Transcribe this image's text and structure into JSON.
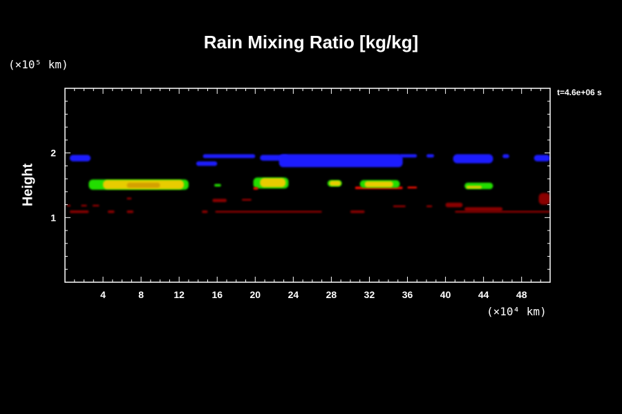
{
  "chart_data": {
    "type": "heatmap",
    "title": "Rain Mixing Ratio [kg/kg]",
    "ylabel": "Height",
    "x_unit": "(×10⁴ km)",
    "y_unit": "(×10⁵ km)",
    "time_label": "t=4.6e+06 s",
    "xlim": [
      0,
      51
    ],
    "ylim": [
      0,
      3
    ],
    "x_ticks": [
      4,
      8,
      12,
      16,
      20,
      24,
      28,
      32,
      36,
      40,
      44,
      48
    ],
    "y_ticks": [
      1,
      2
    ],
    "colors": {
      "blue": "#1a1aff",
      "green": "#22dd00",
      "yellow": "#e8cc00",
      "orange": "#d4a000",
      "red": "#ee1100",
      "darkred": "#8b0000",
      "axis": "#ffffff",
      "background": "#000000"
    },
    "regions": [
      {
        "level": "blue",
        "x0": 0.5,
        "x1": 2.7,
        "y0": 1.87,
        "y1": 1.97
      },
      {
        "level": "blue",
        "x0": 13.8,
        "x1": 16.0,
        "y0": 1.8,
        "y1": 1.87
      },
      {
        "level": "blue",
        "x0": 14.5,
        "x1": 20.0,
        "y0": 1.92,
        "y1": 1.98
      },
      {
        "level": "blue",
        "x0": 20.5,
        "x1": 23.5,
        "y0": 1.88,
        "y1": 1.97
      },
      {
        "level": "blue",
        "x0": 22.5,
        "x1": 35.5,
        "y0": 1.78,
        "y1": 1.98
      },
      {
        "level": "blue",
        "x0": 35.2,
        "x1": 37.0,
        "y0": 1.93,
        "y1": 1.98
      },
      {
        "level": "blue",
        "x0": 38.0,
        "x1": 38.8,
        "y0": 1.93,
        "y1": 1.98
      },
      {
        "level": "blue",
        "x0": 40.8,
        "x1": 45.0,
        "y0": 1.84,
        "y1": 1.98
      },
      {
        "level": "blue",
        "x0": 46.0,
        "x1": 46.7,
        "y0": 1.92,
        "y1": 1.98
      },
      {
        "level": "blue",
        "x0": 49.3,
        "x1": 51.0,
        "y0": 1.87,
        "y1": 1.97
      },
      {
        "level": "green",
        "x0": 2.5,
        "x1": 13.0,
        "y0": 1.43,
        "y1": 1.59
      },
      {
        "level": "yellow",
        "x0": 4.0,
        "x1": 12.5,
        "y0": 1.44,
        "y1": 1.58
      },
      {
        "level": "orange",
        "x0": 6.5,
        "x1": 10.0,
        "y0": 1.46,
        "y1": 1.54
      },
      {
        "level": "green",
        "x0": 15.7,
        "x1": 16.4,
        "y0": 1.48,
        "y1": 1.52
      },
      {
        "level": "green",
        "x0": 19.8,
        "x1": 23.5,
        "y0": 1.45,
        "y1": 1.62
      },
      {
        "level": "yellow",
        "x0": 20.5,
        "x1": 23.2,
        "y0": 1.47,
        "y1": 1.61
      },
      {
        "level": "red",
        "x0": 19.8,
        "x1": 20.3,
        "y0": 1.43,
        "y1": 1.47
      },
      {
        "level": "green",
        "x0": 27.6,
        "x1": 29.1,
        "y0": 1.48,
        "y1": 1.58
      },
      {
        "level": "yellow",
        "x0": 27.8,
        "x1": 29.0,
        "y0": 1.49,
        "y1": 1.57
      },
      {
        "level": "red",
        "x0": 30.5,
        "x1": 35.5,
        "y0": 1.44,
        "y1": 1.48
      },
      {
        "level": "green",
        "x0": 31.0,
        "x1": 35.2,
        "y0": 1.46,
        "y1": 1.58
      },
      {
        "level": "yellow",
        "x0": 31.5,
        "x1": 34.5,
        "y0": 1.47,
        "y1": 1.56
      },
      {
        "level": "red",
        "x0": 36.0,
        "x1": 37.0,
        "y0": 1.45,
        "y1": 1.48
      },
      {
        "level": "green",
        "x0": 42.0,
        "x1": 45.0,
        "y0": 1.44,
        "y1": 1.54
      },
      {
        "level": "yellow",
        "x0": 42.2,
        "x1": 43.8,
        "y0": 1.45,
        "y1": 1.49
      },
      {
        "level": "darkred",
        "x0": 0.5,
        "x1": 2.5,
        "y0": 1.07,
        "y1": 1.11
      },
      {
        "level": "darkred",
        "x0": 4.5,
        "x1": 5.2,
        "y0": 1.07,
        "y1": 1.11
      },
      {
        "level": "darkred",
        "x0": 6.5,
        "x1": 7.2,
        "y0": 1.07,
        "y1": 1.11
      },
      {
        "level": "darkred",
        "x0": 14.4,
        "x1": 15.0,
        "y0": 1.07,
        "y1": 1.11
      },
      {
        "level": "darkred",
        "x0": 15.8,
        "x1": 27.0,
        "y0": 1.075,
        "y1": 1.105
      },
      {
        "level": "darkred",
        "x0": 30.0,
        "x1": 31.5,
        "y0": 1.07,
        "y1": 1.11
      },
      {
        "level": "darkred",
        "x0": 41.0,
        "x1": 51.0,
        "y0": 1.075,
        "y1": 1.105
      },
      {
        "level": "darkred",
        "x0": 0.2,
        "x1": 0.6,
        "y0": 1.17,
        "y1": 1.2
      },
      {
        "level": "darkred",
        "x0": 1.7,
        "x1": 2.3,
        "y0": 1.17,
        "y1": 1.2
      },
      {
        "level": "darkred",
        "x0": 2.9,
        "x1": 3.6,
        "y0": 1.17,
        "y1": 1.2
      },
      {
        "level": "darkred",
        "x0": 6.5,
        "x1": 7.0,
        "y0": 1.28,
        "y1": 1.31
      },
      {
        "level": "darkred",
        "x0": 15.5,
        "x1": 17.0,
        "y0": 1.24,
        "y1": 1.29
      },
      {
        "level": "darkred",
        "x0": 18.6,
        "x1": 19.6,
        "y0": 1.26,
        "y1": 1.29
      },
      {
        "level": "darkred",
        "x0": 40.0,
        "x1": 41.8,
        "y0": 1.16,
        "y1": 1.23
      },
      {
        "level": "darkred",
        "x0": 42.0,
        "x1": 46.0,
        "y0": 1.1,
        "y1": 1.16
      },
      {
        "level": "darkred",
        "x0": 34.5,
        "x1": 35.8,
        "y0": 1.16,
        "y1": 1.19
      },
      {
        "level": "darkred",
        "x0": 38.0,
        "x1": 38.6,
        "y0": 1.16,
        "y1": 1.19
      },
      {
        "level": "darkred",
        "x0": 49.8,
        "x1": 51.0,
        "y0": 1.2,
        "y1": 1.38
      }
    ]
  }
}
